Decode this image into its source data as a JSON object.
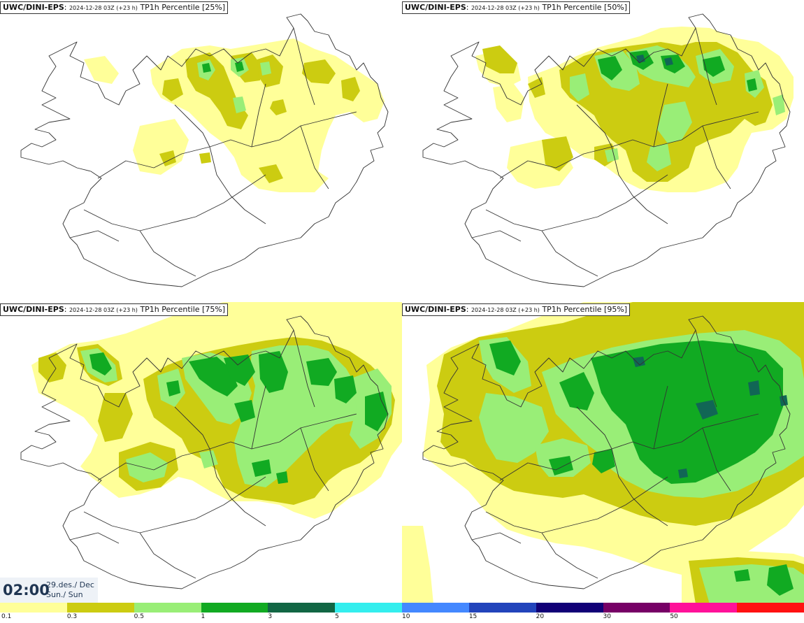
{
  "panels": [
    {
      "model": "UWC/DINI-EPS",
      "run": "2024-12-28 03Z (+23 h)",
      "param": "TP1h Percentile [25%]"
    },
    {
      "model": "UWC/DINI-EPS",
      "run": "2024-12-28 03Z (+23 h)",
      "param": "TP1h Percentile [50%]"
    },
    {
      "model": "UWC/DINI-EPS",
      "run": "2024-12-28 03Z (+23 h)",
      "param": "TP1h Percentile [75%]"
    },
    {
      "model": "UWC/DINI-EPS",
      "run": "2024-12-28 03Z (+23 h)",
      "param": "TP1h Percentile [95%]"
    }
  ],
  "valid_time": {
    "time": "02:00",
    "date_line1": "29.des./ Dec",
    "date_line2": "Sun./ Sun"
  },
  "legend": {
    "labels": [
      "0.1",
      "0.3",
      "0.5",
      "1",
      "3",
      "5",
      "10",
      "15",
      "20",
      "30",
      "50"
    ],
    "colors": [
      "#ffff99",
      "#cccc11",
      "#99ee77",
      "#11aa22",
      "#116644",
      "#33eeee",
      "#4488ff",
      "#2244bb",
      "#110077",
      "#770066",
      "#ff1199",
      "#ff1111"
    ]
  },
  "map_colors": {
    "c1": "#ffff99",
    "c2": "#cccc11",
    "c3": "#99ee77",
    "c4": "#11aa22",
    "c5": "#116655"
  }
}
